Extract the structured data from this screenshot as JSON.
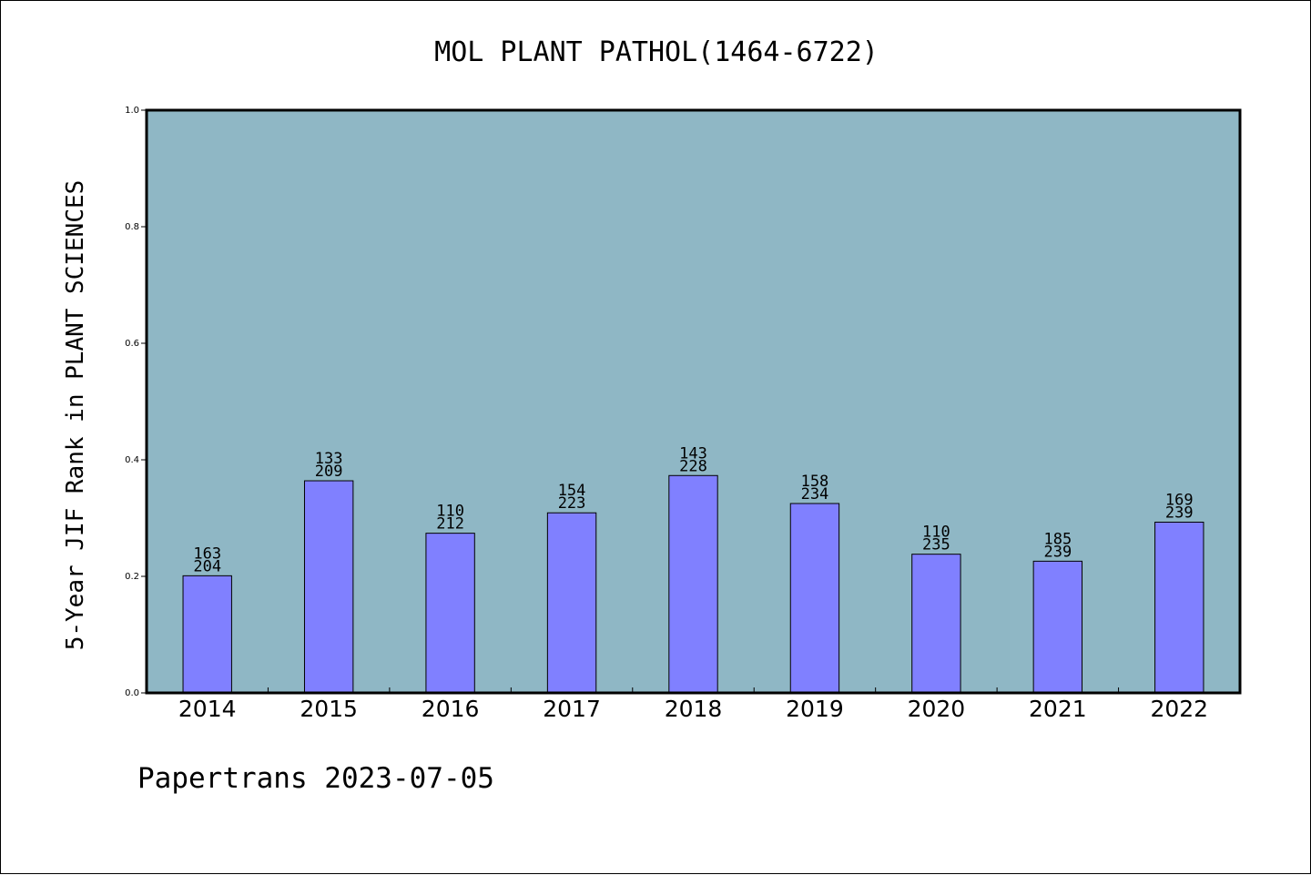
{
  "chart_data": {
    "type": "bar",
    "title": "MOL PLANT PATHOL(1464-6722)",
    "ylabel": "5-Year JIF Rank in PLANT SCIENCES",
    "xlabel": "",
    "ylim": [
      0,
      1.0
    ],
    "yticks": [
      "0.0",
      "0.2",
      "0.4",
      "0.6",
      "0.8",
      "1.0"
    ],
    "categories": [
      "2014",
      "2015",
      "2016",
      "2017",
      "2018",
      "2019",
      "2020",
      "2021",
      "2022"
    ],
    "rank": [
      "163",
      "133",
      "110",
      "154",
      "143",
      "158",
      "110",
      "185",
      "169"
    ],
    "total": [
      "204",
      "209",
      "212",
      "223",
      "228",
      "234",
      "235",
      "239",
      "239"
    ],
    "values": [
      0.201,
      0.364,
      0.274,
      0.309,
      0.373,
      0.325,
      0.238,
      0.226,
      0.293
    ],
    "grid": false,
    "plot_background": "#8fb7c5",
    "bar_color": "#8080ff"
  },
  "footer": "Papertrans 2023-07-05"
}
